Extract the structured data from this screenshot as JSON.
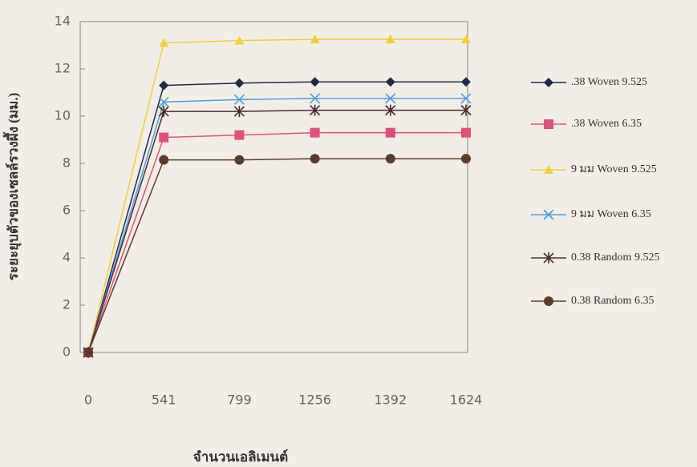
{
  "chart_data": {
    "type": "line",
    "x_label": "จำนวนเอลิเมนต์",
    "y_label": "ระยะยุบตัวของเซลล์รวงผึ้ง (มม.)",
    "categories": [
      "0",
      "541",
      "799",
      "1256",
      "1392",
      "1624"
    ],
    "ylim": [
      0,
      14
    ],
    "yticks": [
      0,
      2,
      4,
      6,
      8,
      10,
      12,
      14
    ],
    "legend": "right",
    "series": [
      {
        "name": ".38 Woven 9.525",
        "color": "#1f2a44",
        "marker": "diamond",
        "values": [
          0,
          11.3,
          11.4,
          11.45,
          11.45,
          11.45
        ]
      },
      {
        "name": ".38 Woven 6.35",
        "color": "#e0507a",
        "marker": "square",
        "values": [
          0,
          9.1,
          9.2,
          9.3,
          9.3,
          9.3
        ]
      },
      {
        "name": "9 มม Woven 9.525",
        "color": "#f0cf3a",
        "marker": "triangle",
        "values": [
          0,
          13.1,
          13.2,
          13.25,
          13.25,
          13.25
        ]
      },
      {
        "name": "9 มม Woven 6.35",
        "color": "#4a9fe0",
        "marker": "x",
        "values": [
          0,
          10.6,
          10.7,
          10.75,
          10.75,
          10.75
        ]
      },
      {
        "name": "0.38 Random 9.525",
        "color": "#4a2c2e",
        "marker": "asterisk",
        "values": [
          0,
          10.2,
          10.2,
          10.25,
          10.25,
          10.25
        ]
      },
      {
        "name": "0.38 Random 6.35",
        "color": "#5b3b2b",
        "marker": "circle",
        "values": [
          0,
          8.15,
          8.15,
          8.2,
          8.2,
          8.2
        ]
      }
    ]
  }
}
